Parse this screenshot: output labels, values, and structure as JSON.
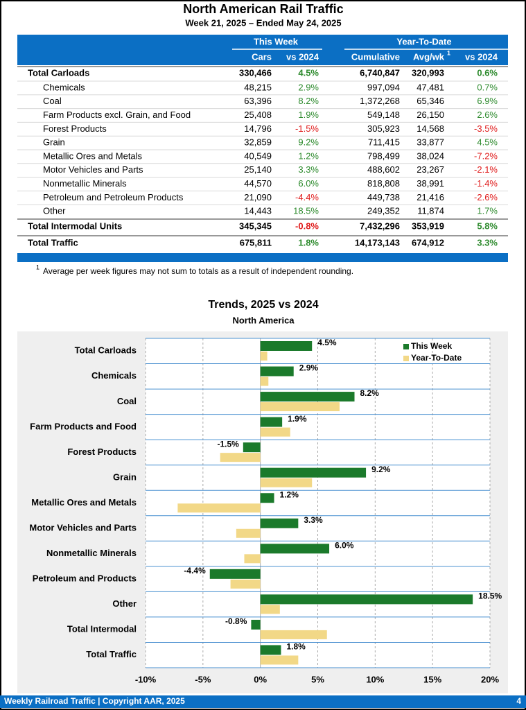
{
  "header": {
    "title": "North American Rail Traffic",
    "subtitle": "Week 21, 2025 – Ended May 24, 2025"
  },
  "table": {
    "groups": [
      "This Week",
      "Year-To-Date"
    ],
    "columns": [
      "Cars",
      "vs 2024",
      "Cumulative",
      "Avg/wk",
      "vs 2024"
    ],
    "column_note_marker": "1",
    "rows": [
      [
        "Total Carloads",
        "330,466",
        "4.5%",
        "6,740,847",
        "320,993",
        "0.6%"
      ],
      [
        "Chemicals",
        "48,215",
        "2.9%",
        "997,094",
        "47,481",
        "0.7%"
      ],
      [
        "Coal",
        "63,396",
        "8.2%",
        "1,372,268",
        "65,346",
        "6.9%"
      ],
      [
        "Farm Products excl. Grain, and Food",
        "25,408",
        "1.9%",
        "549,148",
        "26,150",
        "2.6%"
      ],
      [
        "Forest Products",
        "14,796",
        "-1.5%",
        "305,923",
        "14,568",
        "-3.5%"
      ],
      [
        "Grain",
        "32,859",
        "9.2%",
        "711,415",
        "33,877",
        "4.5%"
      ],
      [
        "Metallic Ores and Metals",
        "40,549",
        "1.2%",
        "798,499",
        "38,024",
        "-7.2%"
      ],
      [
        "Motor Vehicles and Parts",
        "25,140",
        "3.3%",
        "488,602",
        "23,267",
        "-2.1%"
      ],
      [
        "Nonmetallic Minerals",
        "44,570",
        "6.0%",
        "818,808",
        "38,991",
        "-1.4%"
      ],
      [
        "Petroleum and Petroleum Products",
        "21,090",
        "-4.4%",
        "449,738",
        "21,416",
        "-2.6%"
      ],
      [
        "Other",
        "14,443",
        "18.5%",
        "249,352",
        "11,874",
        "1.7%"
      ],
      [
        "Total Intermodal Units",
        "345,345",
        "-0.8%",
        "7,432,296",
        "353,919",
        "5.8%"
      ],
      [
        "Total Traffic",
        "675,811",
        "1.8%",
        "14,173,143",
        "674,912",
        "3.3%"
      ]
    ]
  },
  "footnote": {
    "marker": "1",
    "text": "Average per week figures may not sum to totals as a result of independent rounding."
  },
  "chart_data": {
    "type": "bar",
    "orientation": "horizontal",
    "title": "Trends, 2025 vs 2024",
    "subtitle": "North America",
    "categories": [
      "Total Carloads",
      "Chemicals",
      "Coal",
      "Farm Products and Food",
      "Forest Products",
      "Grain",
      "Metallic Ores and Metals",
      "Motor Vehicles and Parts",
      "Nonmetallic Minerals",
      "Petroleum and Products",
      "Other",
      "Total Intermodal",
      "Total Traffic"
    ],
    "series": [
      {
        "name": "This Week",
        "color": "#1b7a2b",
        "values": [
          4.5,
          2.9,
          8.2,
          1.9,
          -1.5,
          9.2,
          1.2,
          3.3,
          6.0,
          -4.4,
          18.5,
          -0.8,
          1.8
        ],
        "value_labels": [
          "4.5%",
          "2.9%",
          "8.2%",
          "1.9%",
          "-1.5%",
          "9.2%",
          "1.2%",
          "3.3%",
          "6.0%",
          "-4.4%",
          "18.5%",
          "-0.8%",
          "1.8%"
        ]
      },
      {
        "name": "Year-To-Date",
        "color": "#f2d887",
        "values": [
          0.6,
          0.7,
          6.9,
          2.6,
          -3.5,
          4.5,
          -7.2,
          -2.1,
          -1.4,
          -2.6,
          1.7,
          5.8,
          3.3
        ]
      }
    ],
    "xlim": [
      -10,
      20
    ],
    "xticks": [
      {
        "value": -10,
        "label": "-10%"
      },
      {
        "value": -5,
        "label": "-5%"
      },
      {
        "value": 0,
        "label": "0%"
      },
      {
        "value": 5,
        "label": "5%"
      },
      {
        "value": 10,
        "label": "10%"
      },
      {
        "value": 15,
        "label": "15%"
      },
      {
        "value": 20,
        "label": "20%"
      }
    ],
    "grid": true,
    "legend": "upper right"
  },
  "footer": {
    "left": "Weekly Railroad Traffic | Copyright AAR, 2025",
    "page": "4"
  }
}
